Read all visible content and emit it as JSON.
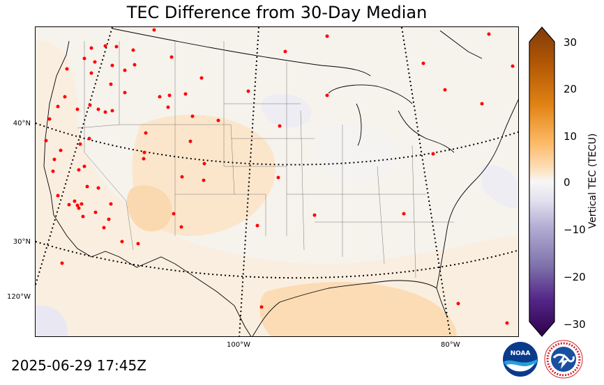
{
  "title": "TEC Difference from 30-Day Median",
  "timestamp": "2025-06-29 17:45Z",
  "map": {
    "lat_labels": [
      "40°N",
      "30°N"
    ],
    "lon_labels": [
      "120°W",
      "100°W",
      "80°W"
    ],
    "background_color": "#f6f2ec"
  },
  "colorbar": {
    "label": "Vertical TEC (TECU)",
    "ticks": [
      "30",
      "20",
      "10",
      "0",
      "−10",
      "−20",
      "−30"
    ],
    "range": [
      -30,
      30
    ],
    "colors": {
      "max": "#7f3b08",
      "positive": "#fdb863",
      "neutral": "#f7f7f7",
      "negative": "#b2abd2",
      "min": "#2d004b"
    }
  },
  "stations_color": "#ff0000",
  "logos": {
    "noaa_text": "NOAA",
    "nws_text": "NATIONAL WEATHER SERVICE"
  }
}
